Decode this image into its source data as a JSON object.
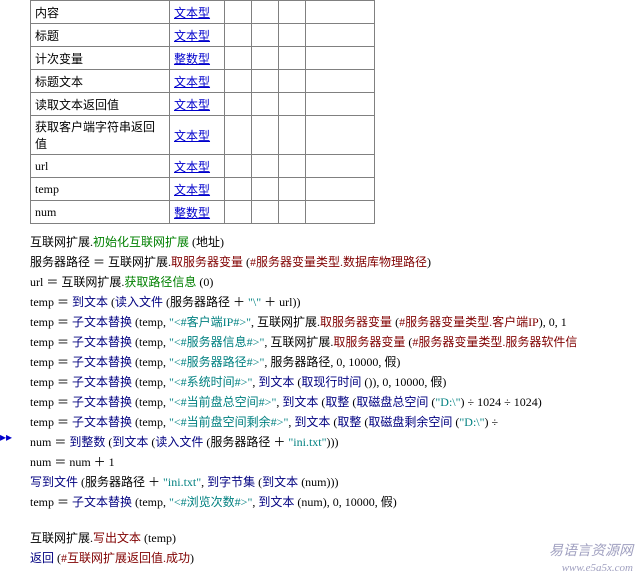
{
  "vars": {
    "rows": [
      {
        "name": "内容",
        "type": "文本型"
      },
      {
        "name": "标题",
        "type": "文本型"
      },
      {
        "name": "计次变量",
        "type": "整数型"
      },
      {
        "name": "标题文本",
        "type": "文本型"
      },
      {
        "name": "读取文本返回值",
        "type": "文本型"
      },
      {
        "name": "获取客户端字符串返回值",
        "type": "文本型"
      },
      {
        "name": "url",
        "type": "文本型"
      },
      {
        "name": "temp",
        "type": "文本型"
      },
      {
        "name": "num",
        "type": "整数型"
      }
    ]
  },
  "code": {
    "l1_a": "互联网扩展.",
    "l1_b": "初始化互联网扩展",
    "l1_c": " (地址)",
    "l2_a": "服务器路径 ＝ 互联网扩展.",
    "l2_b": "取服务器变量",
    "l2_c": " (",
    "l2_d": "#服务器变量类型.数据库物理路径",
    "l2_e": ")",
    "l3_a": "url ＝ 互联网扩展.",
    "l3_b": "获取路径信息",
    "l3_c": " (0)",
    "l4_a": "temp ＝ ",
    "l4_b": "到文本",
    "l4_c": " (",
    "l4_d": "读入文件",
    "l4_e": " (服务器路径 ＋ ",
    "l4_f": "\"\\\"",
    "l4_g": " ＋ url))",
    "l5_a": "temp ＝ ",
    "l5_b": "子文本替换",
    "l5_c": " (temp, ",
    "l5_d": "\"<#客户端IP#>\"",
    "l5_e": ", 互联网扩展.",
    "l5_f": "取服务器变量",
    "l5_g": " (",
    "l5_h": "#服务器变量类型.客户端IP",
    "l5_i": "), 0, 1",
    "l6_a": "temp ＝ ",
    "l6_b": "子文本替换",
    "l6_c": " (temp, ",
    "l6_d": "\"<#服务器信息#>\"",
    "l6_e": ", 互联网扩展.",
    "l6_f": "取服务器变量",
    "l6_g": " (",
    "l6_h": "#服务器变量类型.服务器软件信",
    "l6_i": "",
    "l7_a": "temp ＝ ",
    "l7_b": "子文本替换",
    "l7_c": " (temp, ",
    "l7_d": "\"<#服务器路径#>\"",
    "l7_e": ", 服务器路径, 0, 10000, 假)",
    "l8_a": "temp ＝ ",
    "l8_b": "子文本替换",
    "l8_c": " (temp, ",
    "l8_d": "\"<#系统时间#>\"",
    "l8_e": ", ",
    "l8_f": "到文本",
    "l8_g": " (",
    "l8_h": "取现行时间",
    "l8_i": " ()), 0, 10000, 假)",
    "l9_a": "temp ＝ ",
    "l9_b": "子文本替换",
    "l9_c": " (temp, ",
    "l9_d": "\"<#当前盘总空间#>\"",
    "l9_e": ", ",
    "l9_f": "到文本",
    "l9_g": " (",
    "l9_h": "取整",
    "l9_i": " (",
    "l9_j": "取磁盘总空间",
    "l9_k": " (",
    "l9_l": "\"D:\\\"",
    "l9_m": ") ÷ 1024 ÷ 1024)",
    "l10_a": "temp ＝ ",
    "l10_b": "子文本替换",
    "l10_c": " (temp, ",
    "l10_d": "\"<#当前盘空间剩余#>\"",
    "l10_e": ", ",
    "l10_f": "到文本",
    "l10_g": " (",
    "l10_h": "取整",
    "l10_i": " (",
    "l10_j": "取磁盘剩余空间",
    "l10_k": " (",
    "l10_l": "\"D:\\\"",
    "l10_m": ") ÷",
    "l11_a": "num ＝ ",
    "l11_b": "到整数",
    "l11_c": " (",
    "l11_d": "到文本",
    "l11_e": " (",
    "l11_f": "读入文件",
    "l11_g": " (服务器路径 ＋ ",
    "l11_h": "\"ini.txt\"",
    "l11_i": ")))",
    "l12_a": "num ＝ num ＋ 1",
    "l13_a": "写到文件",
    "l13_b": " (服务器路径 ＋ ",
    "l13_c": "\"ini.txt\"",
    "l13_d": ", ",
    "l13_e": "到字节集",
    "l13_f": " (",
    "l13_g": "到文本",
    "l13_h": " (num)))",
    "l14_a": "temp ＝ ",
    "l14_b": "子文本替换",
    "l14_c": " (temp, ",
    "l14_d": "\"<#浏览次数#>\"",
    "l14_e": ", ",
    "l14_f": "到文本",
    "l14_g": " (num), 0, 10000, 假)",
    "l15_a": "互联网扩展.",
    "l15_b": "写出文本",
    "l15_c": " (temp)",
    "l16_a": "返回",
    "l16_b": " (",
    "l16_c": "#互联网扩展返回值.成功",
    "l16_d": ")"
  },
  "gutter": {
    "mark1": "▸▸",
    "mark2": "↓"
  },
  "watermark": {
    "main": "易语言资源网",
    "sub": "www.e5a5x.com"
  }
}
